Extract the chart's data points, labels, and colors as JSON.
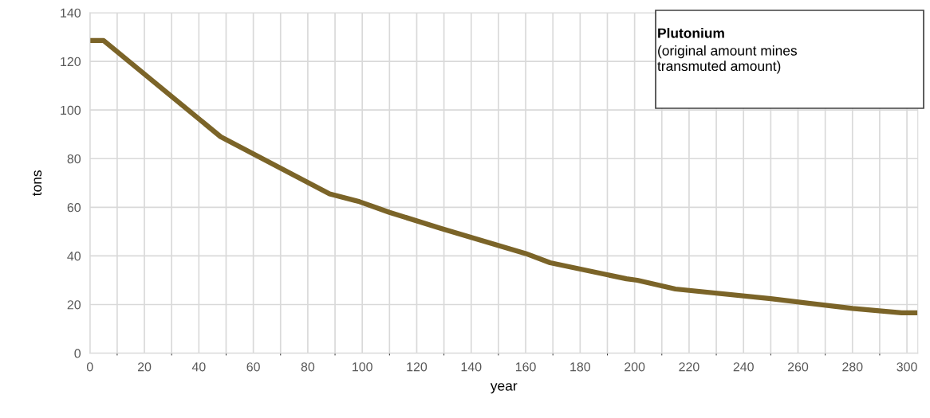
{
  "chart_data": {
    "type": "line",
    "xlabel": "year",
    "ylabel": "tons",
    "annotations": [
      "Plutonium",
      "(original amount mines\ntransmuted amount)"
    ],
    "series": [
      {
        "color": "#7b6428",
        "x": [
          0,
          5,
          48,
          88,
          99,
          110,
          129,
          160,
          169,
          197,
          201,
          215,
          250,
          280,
          298,
          304
        ],
        "values": [
          128.6,
          128.6,
          89,
          65.5,
          62.3,
          57.9,
          51.3,
          41,
          37.2,
          30.6,
          30,
          26.4,
          22.4,
          18.4,
          16.6,
          16.6
        ]
      }
    ],
    "xlim": [
      0,
      304
    ],
    "xticks": [
      0,
      20,
      40,
      60,
      80,
      100,
      120,
      140,
      160,
      180,
      200,
      220,
      240,
      260,
      280,
      300
    ],
    "ylim": [
      0,
      140
    ],
    "yticks": [
      0,
      20,
      40,
      60,
      80,
      100,
      120,
      140
    ],
    "grid": true,
    "marker": "none",
    "line_style": "solid",
    "legend": false
  }
}
